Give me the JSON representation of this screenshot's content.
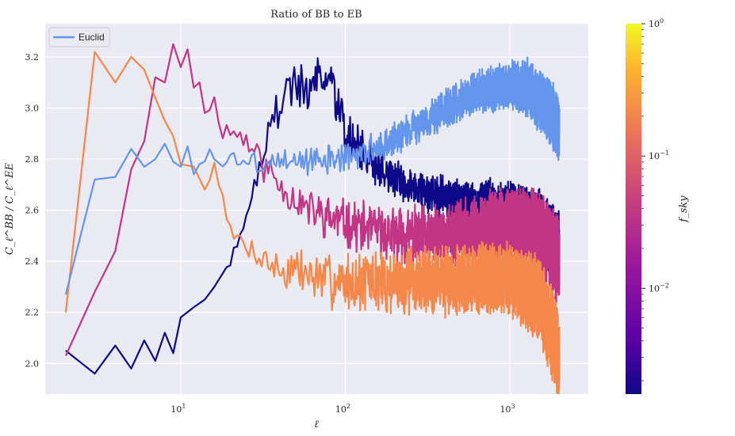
{
  "chart_data": {
    "type": "line",
    "title": "Ratio of BB to EB",
    "xlabel": "ℓ",
    "ylabel": "C_ℓ^BB / C_ℓ^EE",
    "xscale": "log",
    "xlim": [
      1.5,
      3000
    ],
    "ylim": [
      1.88,
      3.33
    ],
    "yticks": [
      "2.0",
      "2.2",
      "2.4",
      "2.6",
      "2.8",
      "3.0",
      "3.2"
    ],
    "xticks": [
      {
        "base": "10",
        "exp": "1"
      },
      {
        "base": "10",
        "exp": "2"
      },
      {
        "base": "10",
        "exp": "3"
      }
    ],
    "grid": true,
    "legend": {
      "placement": "top-left",
      "entries": [
        "Euclid"
      ]
    },
    "colorbar": {
      "label": "f_sky",
      "scale": "log",
      "ticks": [
        {
          "base": "10",
          "exp": "0"
        },
        {
          "base": "10",
          "exp": "−1"
        },
        {
          "base": "10",
          "exp": "−2"
        }
      ]
    },
    "colors": {
      "euclid": "#6495ed",
      "orange": "#f4884a",
      "magenta": "#c13584",
      "navy": "#0d0887",
      "bg": "#eaeaf2"
    },
    "series": [
      {
        "name": "Euclid",
        "color": "#6495ed",
        "anchors": [
          [
            2,
            2.27
          ],
          [
            3,
            2.72
          ],
          [
            4,
            2.73
          ],
          [
            5,
            2.84
          ],
          [
            6,
            2.77
          ],
          [
            7,
            2.8
          ],
          [
            8,
            2.86
          ],
          [
            9,
            2.79
          ],
          [
            10,
            2.77
          ],
          [
            11,
            2.85
          ],
          [
            12,
            2.74
          ],
          [
            13,
            2.78
          ],
          [
            15,
            2.82
          ],
          [
            17,
            2.78
          ],
          [
            20,
            2.81
          ],
          [
            25,
            2.79
          ],
          [
            30,
            2.78
          ],
          [
            40,
            2.8
          ],
          [
            60,
            2.79
          ],
          [
            80,
            2.8
          ],
          [
            100,
            2.8
          ],
          [
            150,
            2.84
          ],
          [
            200,
            2.88
          ],
          [
            300,
            2.95
          ],
          [
            500,
            3.03
          ],
          [
            700,
            3.07
          ],
          [
            1000,
            3.09
          ],
          [
            1300,
            3.08
          ],
          [
            1600,
            3.02
          ],
          [
            1900,
            2.95
          ],
          [
            2000,
            2.88
          ]
        ],
        "noise": [
          [
            2,
            0
          ],
          [
            15,
            0.02
          ],
          [
            30,
            0.04
          ],
          [
            100,
            0.05
          ],
          [
            300,
            0.06
          ],
          [
            1000,
            0.08
          ],
          [
            2000,
            0.12
          ]
        ],
        "start_noise": 14,
        "seed": 3
      },
      {
        "color": "#f4884a",
        "anchors": [
          [
            2,
            2.2
          ],
          [
            3,
            3.22
          ],
          [
            4,
            3.1
          ],
          [
            5,
            3.2
          ],
          [
            6,
            3.15
          ],
          [
            7,
            3.04
          ],
          [
            8,
            2.95
          ],
          [
            9,
            2.89
          ],
          [
            10,
            2.78
          ],
          [
            12,
            2.77
          ],
          [
            14,
            2.68
          ],
          [
            16,
            2.77
          ],
          [
            18,
            2.68
          ],
          [
            20,
            2.5
          ],
          [
            25,
            2.46
          ],
          [
            30,
            2.43
          ],
          [
            40,
            2.36
          ],
          [
            50,
            2.37
          ],
          [
            70,
            2.33
          ],
          [
            100,
            2.32
          ],
          [
            200,
            2.32
          ],
          [
            400,
            2.33
          ],
          [
            700,
            2.34
          ],
          [
            1000,
            2.33
          ],
          [
            1500,
            2.25
          ],
          [
            1900,
            2.08
          ],
          [
            2000,
            1.98
          ]
        ],
        "noise": [
          [
            2,
            0
          ],
          [
            15,
            0.03
          ],
          [
            30,
            0.06
          ],
          [
            100,
            0.1
          ],
          [
            300,
            0.12
          ],
          [
            1000,
            0.12
          ],
          [
            2000,
            0.15
          ]
        ],
        "start_noise": 15,
        "seed": 7
      },
      {
        "color": "#c13584",
        "anchors": [
          [
            2,
            2.03
          ],
          [
            3,
            2.28
          ],
          [
            4,
            2.44
          ],
          [
            5,
            2.76
          ],
          [
            6,
            2.87
          ],
          [
            7,
            3.12
          ],
          [
            8,
            3.1
          ],
          [
            9,
            3.25
          ],
          [
            10,
            3.16
          ],
          [
            11,
            3.23
          ],
          [
            12,
            3.08
          ],
          [
            13,
            3.1
          ],
          [
            14,
            3.0
          ],
          [
            16,
            3.02
          ],
          [
            18,
            2.92
          ],
          [
            20,
            2.91
          ],
          [
            25,
            2.88
          ],
          [
            30,
            2.8
          ],
          [
            40,
            2.7
          ],
          [
            60,
            2.6
          ],
          [
            100,
            2.55
          ],
          [
            200,
            2.5
          ],
          [
            400,
            2.5
          ],
          [
            700,
            2.53
          ],
          [
            1000,
            2.55
          ],
          [
            1500,
            2.52
          ],
          [
            2000,
            2.4
          ]
        ],
        "noise": [
          [
            2,
            0
          ],
          [
            14,
            0.03
          ],
          [
            30,
            0.06
          ],
          [
            100,
            0.08
          ],
          [
            300,
            0.1
          ],
          [
            1000,
            0.12
          ],
          [
            2000,
            0.14
          ]
        ],
        "start_noise": 14,
        "seed": 11
      },
      {
        "color": "#0d0887",
        "anchors": [
          [
            2,
            2.05
          ],
          [
            3,
            1.96
          ],
          [
            4,
            2.07
          ],
          [
            5,
            1.98
          ],
          [
            6,
            2.09
          ],
          [
            7,
            2.01
          ],
          [
            8,
            2.12
          ],
          [
            9,
            2.04
          ],
          [
            10,
            2.18
          ],
          [
            12,
            2.22
          ],
          [
            14,
            2.25
          ],
          [
            16,
            2.3
          ],
          [
            20,
            2.4
          ],
          [
            25,
            2.58
          ],
          [
            30,
            2.78
          ],
          [
            40,
            3.02
          ],
          [
            50,
            3.1
          ],
          [
            60,
            3.06
          ],
          [
            70,
            3.14
          ],
          [
            80,
            3.12
          ],
          [
            100,
            2.9
          ],
          [
            150,
            2.78
          ],
          [
            200,
            2.72
          ],
          [
            300,
            2.68
          ],
          [
            500,
            2.62
          ],
          [
            1000,
            2.6
          ],
          [
            1500,
            2.55
          ],
          [
            2000,
            2.45
          ]
        ],
        "noise": [
          [
            2,
            0
          ],
          [
            20,
            0.02
          ],
          [
            40,
            0.08
          ],
          [
            100,
            0.08
          ],
          [
            200,
            0.06
          ],
          [
            500,
            0.08
          ],
          [
            1000,
            0.1
          ],
          [
            2000,
            0.12
          ]
        ],
        "start_noise": 20,
        "seed": 19
      }
    ]
  }
}
